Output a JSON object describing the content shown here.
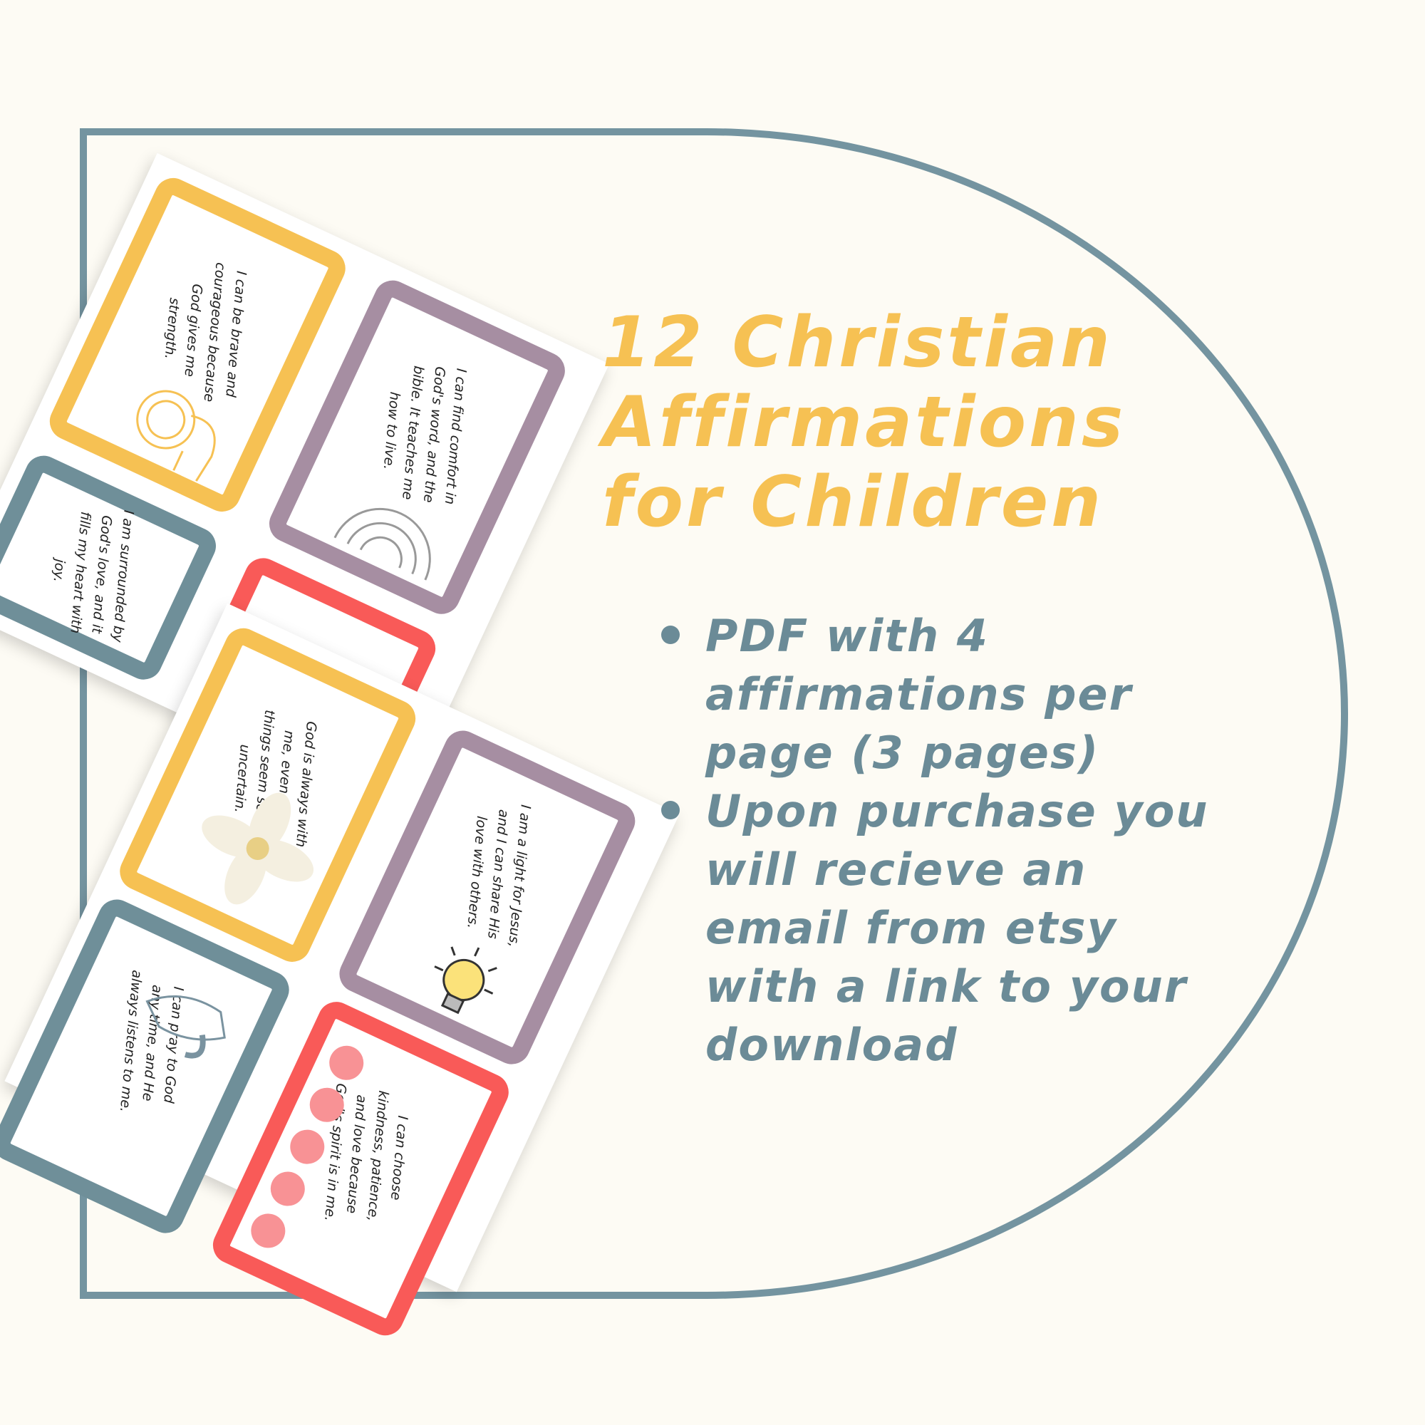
{
  "title": {
    "line1": "12 Christian",
    "line2": "Affirmations",
    "line3": "for Children"
  },
  "bullets": [
    "PDF with 4 affirmations per page (3 pages)",
    "Upon purchase you will recieve an email from etsy with a link to your download"
  ],
  "cards": [
    {
      "text": "I can be brave and courageous because God gives me strength.",
      "icon": "lion-icon"
    },
    {
      "text": "I can find comfort in God's word, and the bible. It teaches me how to live.",
      "icon": "rainbow-icon"
    },
    {
      "text": "I am surrounded by God's love, and it fills my heart with joy.",
      "icon": "heart-icon"
    },
    {
      "text": "God is always with me, even when things seem scary or uncertain.",
      "icon": "daisy-icon"
    },
    {
      "text": "I am a light for Jesus, and I can share His love with others.",
      "icon": "lightbulb-icon"
    },
    {
      "text": "I can pray to God any time, and He always listens to me.",
      "icon": "praying-hands-icon"
    },
    {
      "text": "I can choose kindness, patience, and love because God's spirit is in me.",
      "icon": "dots-icon"
    }
  ],
  "colors": {
    "accent_yellow": "#f6c153",
    "slate": "#6f8f99",
    "purple": "#a68ea2",
    "red": "#f95a58",
    "background": "#fdfbf4"
  }
}
